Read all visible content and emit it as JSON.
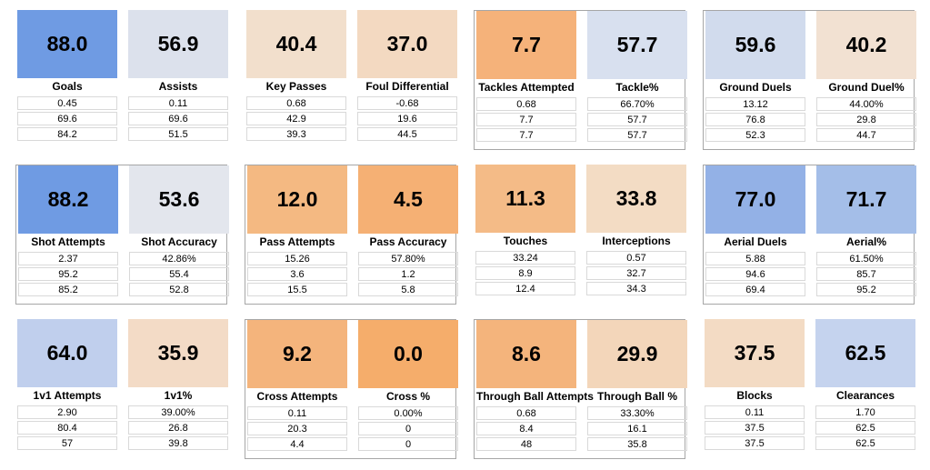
{
  "rows": [
    [
      {
        "boxed": false,
        "cards": [
          {
            "value": "88.0",
            "label": "Goals",
            "color": "#6f9be3",
            "rows": [
              "0.45",
              "69.6",
              "84.2"
            ]
          },
          {
            "value": "56.9",
            "label": "Assists",
            "color": "#dce1ec",
            "rows": [
              "0.11",
              "69.6",
              "51.5"
            ]
          }
        ]
      },
      {
        "boxed": false,
        "cards": [
          {
            "value": "40.4",
            "label": "Key Passes",
            "color": "#f2dfcc",
            "rows": [
              "0.68",
              "42.9",
              "39.3"
            ]
          },
          {
            "value": "37.0",
            "label": "Foul Differential",
            "color": "#f3d9c1",
            "rows": [
              "-0.68",
              "19.6",
              "44.5"
            ]
          }
        ]
      },
      {
        "boxed": true,
        "cards": [
          {
            "value": "7.7",
            "label": "Tackles Attempted",
            "color": "#f5b27a",
            "rows": [
              "0.68",
              "7.7",
              "7.7"
            ]
          },
          {
            "value": "57.7",
            "label": "Tackle%",
            "color": "#d8e0ef",
            "rows": [
              "66.70%",
              "57.7",
              "57.7"
            ]
          }
        ]
      },
      {
        "boxed": true,
        "cards": [
          {
            "value": "59.6",
            "label": "Ground Duels",
            "color": "#d1dbed",
            "rows": [
              "13.12",
              "76.8",
              "52.3"
            ]
          },
          {
            "value": "40.2",
            "label": "Ground Duel%",
            "color": "#f2e1d2",
            "rows": [
              "44.00%",
              "29.8",
              "44.7"
            ]
          }
        ]
      }
    ],
    [
      {
        "boxed": true,
        "cards": [
          {
            "value": "88.2",
            "label": "Shot Attempts",
            "color": "#6f9be3",
            "rows": [
              "2.37",
              "95.2",
              "85.2"
            ]
          },
          {
            "value": "53.6",
            "label": "Shot Accuracy",
            "color": "#e3e6ed",
            "rows": [
              "42.86%",
              "55.4",
              "52.8"
            ]
          }
        ]
      },
      {
        "boxed": true,
        "cards": [
          {
            "value": "12.0",
            "label": "Pass Attempts",
            "color": "#f4b982",
            "rows": [
              "15.26",
              "3.6",
              "15.5"
            ]
          },
          {
            "value": "4.5",
            "label": "Pass Accuracy",
            "color": "#f5b074",
            "rows": [
              "57.80%",
              "1.2",
              "5.8"
            ]
          }
        ]
      },
      {
        "boxed": false,
        "cards": [
          {
            "value": "11.3",
            "label": "Touches",
            "color": "#f4bb87",
            "rows": [
              "33.24",
              "8.9",
              "12.4"
            ]
          },
          {
            "value": "33.8",
            "label": "Interceptions",
            "color": "#f3dcc4",
            "rows": [
              "0.57",
              "32.7",
              "34.3"
            ]
          }
        ]
      },
      {
        "boxed": true,
        "cards": [
          {
            "value": "77.0",
            "label": "Aerial Duels",
            "color": "#93b1e6",
            "rows": [
              "5.88",
              "94.6",
              "69.4"
            ]
          },
          {
            "value": "71.7",
            "label": "Aerial%",
            "color": "#a4bee8",
            "rows": [
              "61.50%",
              "85.7",
              "95.2"
            ]
          }
        ]
      }
    ],
    [
      {
        "boxed": false,
        "cards": [
          {
            "value": "64.0",
            "label": "1v1 Attempts",
            "color": "#c0cfed",
            "rows": [
              "2.90",
              "80.4",
              "57"
            ]
          },
          {
            "value": "35.9",
            "label": "1v1%",
            "color": "#f3dbc6",
            "rows": [
              "39.00%",
              "26.8",
              "39.8"
            ]
          }
        ]
      },
      {
        "boxed": true,
        "cards": [
          {
            "value": "9.2",
            "label": "Cross Attempts",
            "color": "#f4b47c",
            "rows": [
              "0.11",
              "20.3",
              "4.4"
            ]
          },
          {
            "value": "0.0",
            "label": "Cross %",
            "color": "#f5ad6b",
            "rows": [
              "0.00%",
              "0",
              "0"
            ]
          }
        ]
      },
      {
        "boxed": true,
        "cards": [
          {
            "value": "8.6",
            "label": "Through Ball Attempts",
            "color": "#f4b47c",
            "rows": [
              "0.68",
              "8.4",
              "48"
            ]
          },
          {
            "value": "29.9",
            "label": "Through Ball %",
            "color": "#f3d6ba",
            "rows": [
              "33.30%",
              "16.1",
              "35.8"
            ]
          }
        ]
      },
      {
        "boxed": false,
        "cards": [
          {
            "value": "37.5",
            "label": "Blocks",
            "color": "#f3dbc4",
            "rows": [
              "0.11",
              "37.5",
              "37.5"
            ]
          },
          {
            "value": "62.5",
            "label": "Clearances",
            "color": "#c5d3ee",
            "rows": [
              "1.70",
              "62.5",
              "62.5"
            ]
          }
        ]
      }
    ]
  ]
}
